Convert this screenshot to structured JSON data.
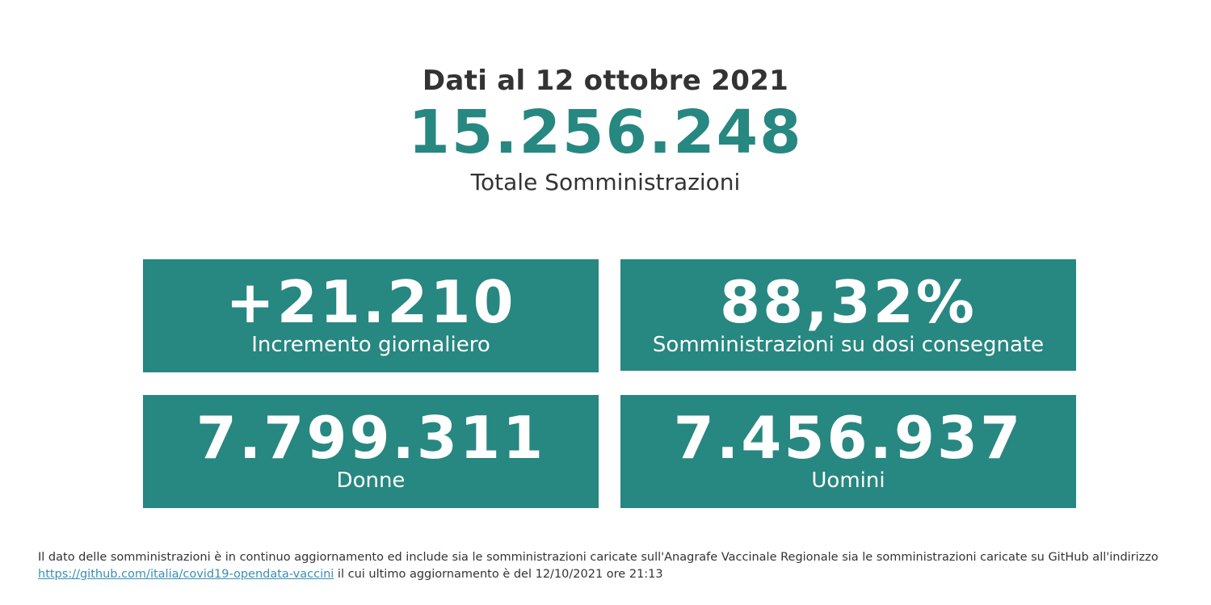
{
  "header": {
    "date_line": "Dati al 12 ottobre 2021",
    "total_value": "15.256.248",
    "total_label": "Totale Somministrazioni"
  },
  "cards": [
    {
      "value": "+21.210",
      "label": "Incremento giornaliero"
    },
    {
      "value": "88,32%",
      "label": "Somministrazioni su dosi consegnate"
    },
    {
      "value": "7.799.311",
      "label": "Donne"
    },
    {
      "value": "7.456.937",
      "label": "Uomini"
    }
  ],
  "footer": {
    "text_1": "Il dato delle somministrazioni è in continuo aggiornamento ed include sia le somministrazioni caricate sull'Anagrafe Vaccinale Regionale sia le somministrazioni caricate su GitHub all'indirizzo",
    "link_text": "https://github.com/italia/covid19-opendata-vaccini",
    "text_2": " il cui ultimo aggiornamento è del 12/10/2021 ore 21:13"
  },
  "colors": {
    "accent": "#278781",
    "text": "#333333",
    "link": "#3a8fb5"
  }
}
